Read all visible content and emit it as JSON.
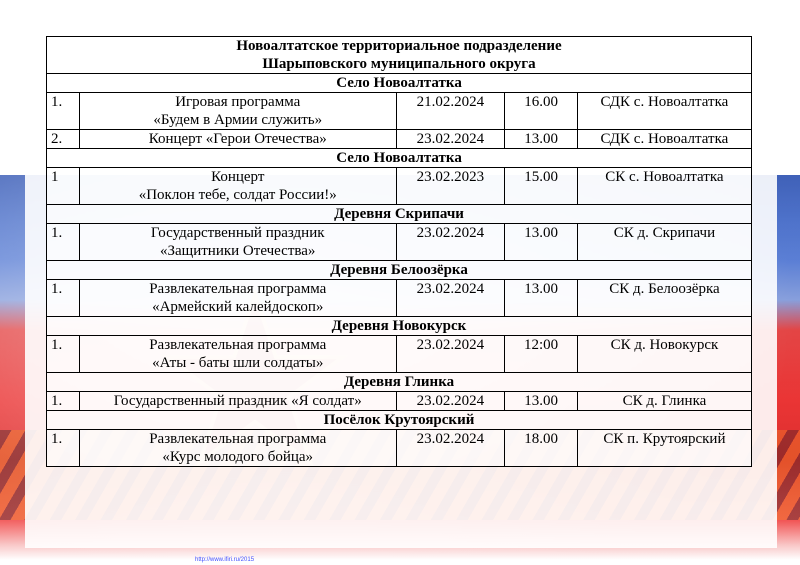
{
  "header": {
    "line1": "Новоалтатское территориальное подразделение",
    "line2": "Шарыповского муниципального округа"
  },
  "sections": [
    {
      "name": "Село Новоалтатка",
      "rows": [
        {
          "num": "1.",
          "title1": "Игровая программа",
          "title2": "«Будем в Армии служить»",
          "date": "21.02.2024",
          "time": "16.00",
          "place": "СДК с. Новоалтатка"
        },
        {
          "num": "2.",
          "title1": "Концерт «Герои Отечества»",
          "title2": "",
          "date": "23.02.2024",
          "time": "13.00",
          "place": "СДК с. Новоалтатка"
        }
      ]
    },
    {
      "name": "Село Новоалтатка",
      "rows": [
        {
          "num": "1",
          "title1": "Концерт",
          "title2": "«Поклон тебе, солдат России!»",
          "date": "23.02.2023",
          "time": "15.00",
          "place": "СК с. Новоалтатка"
        }
      ]
    },
    {
      "name": "Деревня Скрипачи",
      "rows": [
        {
          "num": "1.",
          "title1": "Государственный праздник",
          "title2": "«Защитники Отечества»",
          "date": "23.02.2024",
          "time": "13.00",
          "place": "СК д. Скрипачи"
        }
      ]
    },
    {
      "name": "Деревня Белоозёрка",
      "rows": [
        {
          "num": "1.",
          "title1": "Развлекательная программа",
          "title2": "«Армейский калейдоскоп»",
          "date": "23.02.2024",
          "time": "13.00",
          "place": "СК д. Белоозёрка"
        }
      ]
    },
    {
      "name": "Деревня Новокурск",
      "rows": [
        {
          "num": "1.",
          "title1": "Развлекательная программа",
          "title2": "«Аты - баты шли солдаты»",
          "date": "23.02.2024",
          "time": "12:00",
          "place": "СК д. Новокурск"
        }
      ]
    },
    {
      "name": "Деревня Глинка",
      "rows": [
        {
          "num": "1.",
          "title1": "Государственный праздник «Я солдат»",
          "title2": "",
          "date": "23.02.2024",
          "time": "13.00",
          "place": "СК д. Глинка"
        }
      ]
    },
    {
      "name": "Посёлок Крутоярский",
      "rows": [
        {
          "num": "1.",
          "title1": "Развлекательная программа",
          "title2": "«Курс молодого бойца»",
          "date": "23.02.2024",
          "time": "18.00",
          "place": "СК п. Крутоярский"
        }
      ]
    }
  ],
  "footer": {
    "link_text": "http://www.ifiri.ru/2015"
  },
  "colors": {
    "flag_white": "#ffffff",
    "flag_blue": "#2a4fb0",
    "flag_red": "#e81e1e"
  }
}
